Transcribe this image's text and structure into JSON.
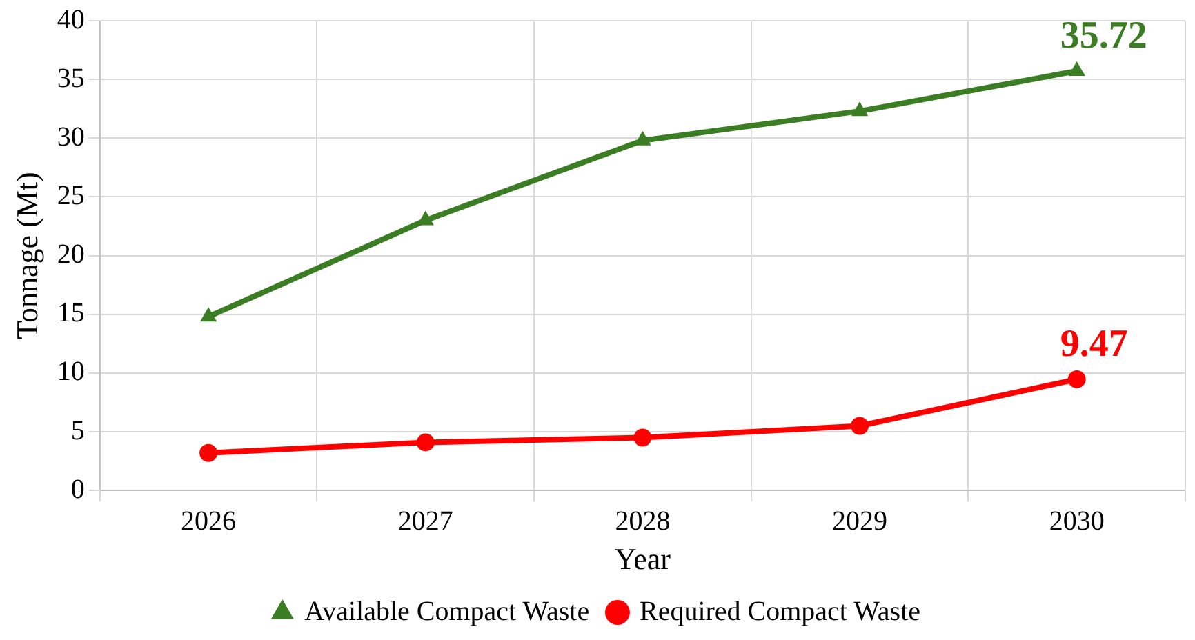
{
  "chart_data": {
    "type": "line",
    "xlabel": "Year",
    "ylabel": "Tonnage (Mt)",
    "categories": [
      "2026",
      "2027",
      "2028",
      "2029",
      "2030"
    ],
    "series": [
      {
        "name": "Available Compact Waste",
        "color": "#3a7d22",
        "values": [
          14.8,
          23.0,
          29.8,
          32.3,
          35.72
        ],
        "marker": "triangle"
      },
      {
        "name": "Required Compact Waste",
        "color": "#ff0000",
        "values": [
          3.2,
          4.1,
          4.5,
          5.5,
          9.47
        ],
        "marker": "circle"
      }
    ],
    "ylim": [
      0,
      40
    ],
    "yticks": [
      0,
      5,
      10,
      15,
      20,
      25,
      30,
      35,
      40
    ],
    "grid": true,
    "legend": "bottom",
    "line_style": "solid",
    "annotations": [
      {
        "text": "35.72",
        "x": "2030",
        "y": 35.72
      },
      {
        "text": "9.47",
        "x": "2030",
        "y": 9.47
      }
    ]
  }
}
